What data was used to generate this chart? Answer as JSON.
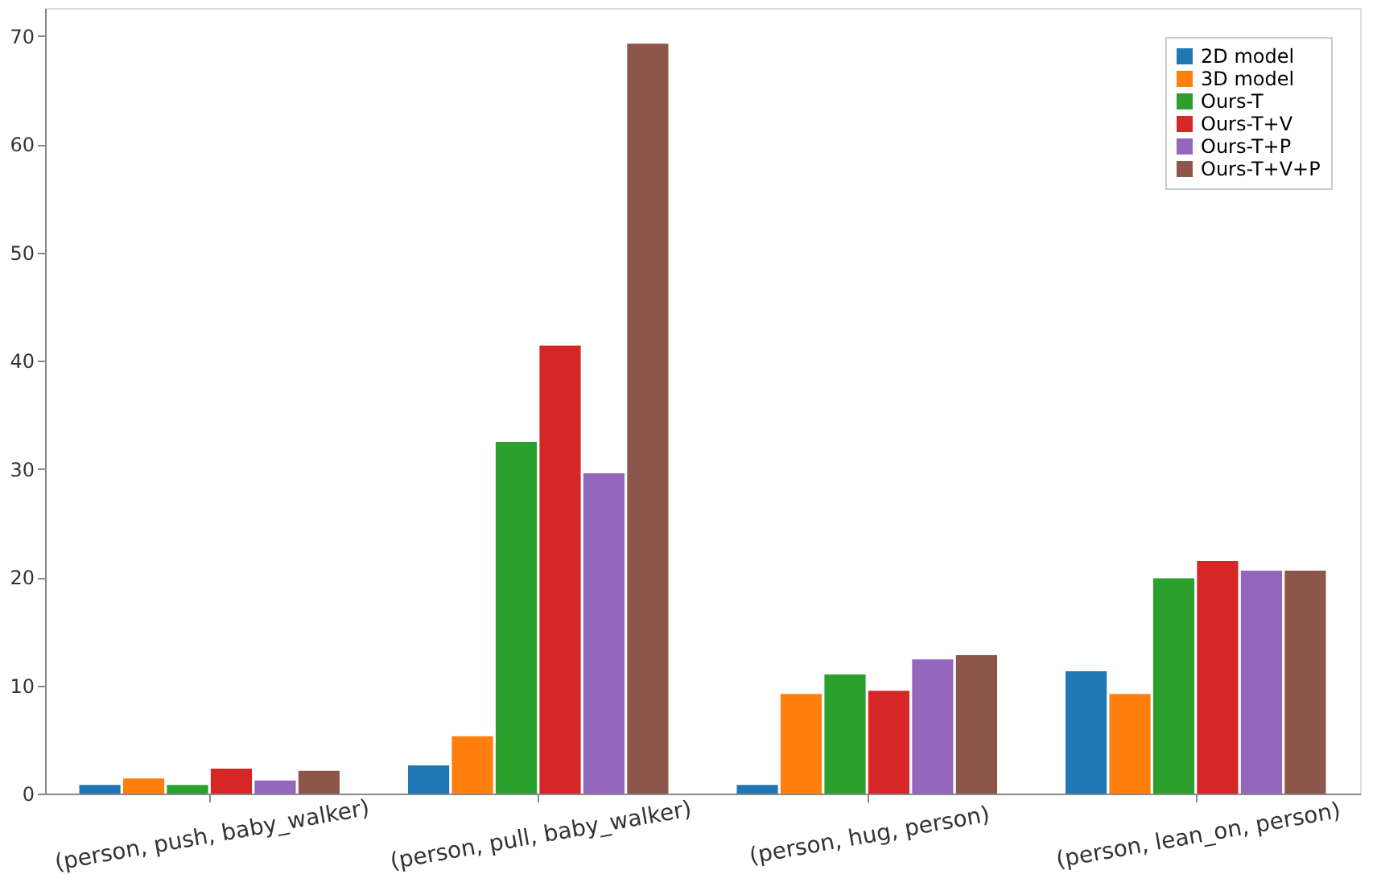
{
  "chart_data": {
    "type": "bar",
    "categories": [
      "(person, push, baby_walker)",
      "(person, pull, baby_walker)",
      "(person, hug, person)",
      "(person, lean_on, person)"
    ],
    "series": [
      {
        "name": "2D model",
        "color": "#1f77b4",
        "values": [
          0.8,
          2.6,
          0.8,
          11.3
        ]
      },
      {
        "name": "3D model",
        "color": "#ff7f0e",
        "values": [
          1.4,
          5.3,
          9.2,
          9.2
        ]
      },
      {
        "name": "Ours-T",
        "color": "#2ca02c",
        "values": [
          0.8,
          32.5,
          11.0,
          19.9
        ]
      },
      {
        "name": "Ours-T+V",
        "color": "#d62728",
        "values": [
          2.3,
          41.4,
          9.5,
          21.5
        ]
      },
      {
        "name": "Ours-T+P",
        "color": "#9467bd",
        "values": [
          1.2,
          29.6,
          12.4,
          20.6
        ]
      },
      {
        "name": "Ours-T+V+P",
        "color": "#8c564b",
        "values": [
          2.1,
          69.3,
          12.8,
          20.6
        ]
      }
    ],
    "ylim": [
      0,
      72.6
    ],
    "yticks": [
      0,
      10,
      20,
      30,
      40,
      50,
      60,
      70
    ],
    "grid": false,
    "legend": "top right"
  }
}
